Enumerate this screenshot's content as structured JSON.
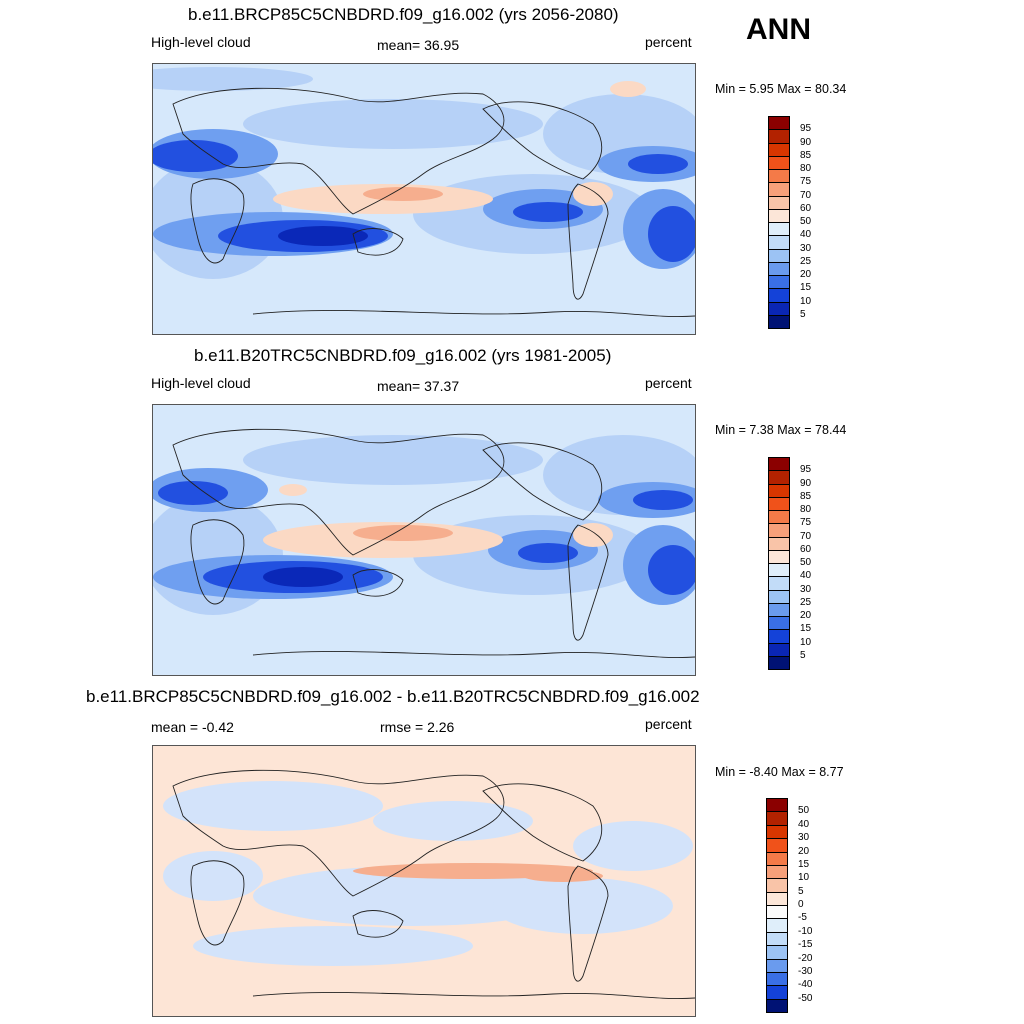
{
  "season": "ANN",
  "panels": [
    {
      "title": "b.e11.BRCP85C5CNBDRD.f09_g16.002 (yrs 2056-2080)",
      "left_label": "High-level cloud",
      "center_label": "mean=  36.95",
      "right_label": "percent",
      "minmax": "Min =   5.95 Max =  80.34",
      "colorbar": {
        "labels": [
          "95",
          "90",
          "85",
          "80",
          "75",
          "70",
          "60",
          "50",
          "40",
          "30",
          "25",
          "20",
          "15",
          "10",
          "5"
        ],
        "colors": [
          "#8b0000",
          "#b22200",
          "#d83600",
          "#f0521a",
          "#f47a48",
          "#f7a07a",
          "#f9c4a8",
          "#fce6d8",
          "#dfeefa",
          "#c2dcf8",
          "#9cc3f4",
          "#6a9bee",
          "#3a6fe6",
          "#1442d8",
          "#0a26b4",
          "#001274"
        ]
      }
    },
    {
      "title": "b.e11.B20TRC5CNBDRD.f09_g16.002 (yrs 1981-2005)",
      "left_label": "High-level cloud",
      "center_label": "mean=  37.37",
      "right_label": "percent",
      "minmax": "Min =   7.38 Max =  78.44",
      "colorbar": {
        "labels": [
          "95",
          "90",
          "85",
          "80",
          "75",
          "70",
          "60",
          "50",
          "40",
          "30",
          "25",
          "20",
          "15",
          "10",
          "5"
        ],
        "colors": [
          "#8b0000",
          "#b22200",
          "#d83600",
          "#f0521a",
          "#f47a48",
          "#f7a07a",
          "#f9c4a8",
          "#fce6d8",
          "#dfeefa",
          "#c2dcf8",
          "#9cc3f4",
          "#6a9bee",
          "#3a6fe6",
          "#1442d8",
          "#0a26b4",
          "#001274"
        ]
      }
    },
    {
      "title": "b.e11.BRCP85C5CNBDRD.f09_g16.002 - b.e11.B20TRC5CNBDRD.f09_g16.002",
      "left_label": "mean =  -0.42",
      "center_label": "rmse =   2.26",
      "right_label": "percent",
      "minmax": "Min =  -8.40 Max =   8.77",
      "colorbar": {
        "labels": [
          "50",
          "40",
          "30",
          "20",
          "15",
          "10",
          "5",
          "0",
          "-5",
          "-10",
          "-15",
          "-20",
          "-30",
          "-40",
          "-50"
        ],
        "colors": [
          "#8b0000",
          "#b22200",
          "#d83600",
          "#f0521a",
          "#f47a48",
          "#f7a07a",
          "#f9c4a8",
          "#fce6d8",
          "#fbfbfb",
          "#dfeefa",
          "#c2dcf8",
          "#9cc3f4",
          "#6a9bee",
          "#3a6fe6",
          "#1442d8",
          "#001274"
        ]
      }
    }
  ],
  "colors": {
    "ocean_base": "#d6e8fb",
    "low_light": "#b6d1f7",
    "low_mid": "#6f9ff0",
    "low_strong": "#2250e0",
    "low_deep": "#0a28b8",
    "high_light": "#fbd9c4",
    "high_mid": "#f6ae8e",
    "diff_base": "#fde5d6",
    "diff_neg": "#d3e3fa"
  }
}
